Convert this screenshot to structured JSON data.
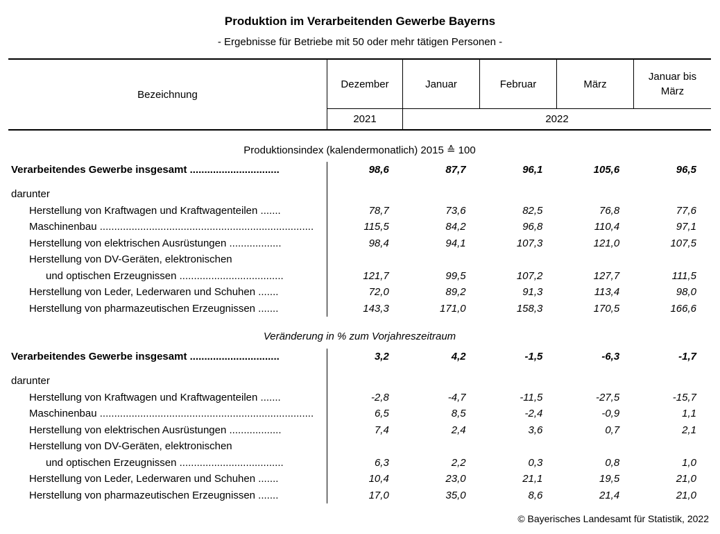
{
  "title": "Produktion im Verarbeitenden Gewerbe Bayerns",
  "subtitle": "- Ergebnisse für Betriebe mit 50 oder mehr tätigen Personen -",
  "header": {
    "label": "Bezeichnung",
    "months": [
      "Dezember",
      "Januar",
      "Februar",
      "März",
      "Januar bis März"
    ],
    "year1": "2021",
    "year2": "2022"
  },
  "sections": [
    {
      "heading": "Produktionsindex (kalendermonatlich) 2015 ≙ 100",
      "italic": false,
      "total": {
        "label": "Verarbeitendes Gewerbe insgesamt ...............................",
        "values": [
          "98,6",
          "87,7",
          "96,1",
          "105,6",
          "96,5"
        ]
      },
      "darunter": "darunter",
      "rows": [
        {
          "label": "Herstellung von Kraftwagen und Kraftwagenteilen .......",
          "values": [
            "78,7",
            "73,6",
            "82,5",
            "76,8",
            "77,6"
          ]
        },
        {
          "label": "Maschinenbau ..........................................................................",
          "values": [
            "115,5",
            "84,2",
            "96,8",
            "110,4",
            "97,1"
          ]
        },
        {
          "label": "Herstellung von elektrischen Ausrüstungen ..................",
          "values": [
            "98,4",
            "94,1",
            "107,3",
            "121,0",
            "107,5"
          ]
        },
        {
          "label": "Herstellung von DV-Geräten, elektronischen",
          "values": []
        },
        {
          "label": "und optischen Erzeugnissen ....................................",
          "indent": true,
          "values": [
            "121,7",
            "99,5",
            "107,2",
            "127,7",
            "111,5"
          ]
        },
        {
          "label": "Herstellung von Leder, Lederwaren und Schuhen .......",
          "values": [
            "72,0",
            "89,2",
            "91,3",
            "113,4",
            "98,0"
          ]
        },
        {
          "label": "Herstellung von pharmazeutischen Erzeugnissen .......",
          "values": [
            "143,3",
            "171,0",
            "158,3",
            "170,5",
            "166,6"
          ]
        }
      ]
    },
    {
      "heading": "Veränderung in % zum Vorjahreszeitraum",
      "italic": true,
      "total": {
        "label": "Verarbeitendes Gewerbe insgesamt ...............................",
        "values": [
          "3,2",
          "4,2",
          "-1,5",
          "-6,3",
          "-1,7"
        ]
      },
      "darunter": "darunter",
      "rows": [
        {
          "label": "Herstellung von Kraftwagen und Kraftwagenteilen .......",
          "values": [
            "-2,8",
            "-4,7",
            "-11,5",
            "-27,5",
            "-15,7"
          ]
        },
        {
          "label": "Maschinenbau ..........................................................................",
          "values": [
            "6,5",
            "8,5",
            "-2,4",
            "-0,9",
            "1,1"
          ]
        },
        {
          "label": "Herstellung von elektrischen Ausrüstungen ..................",
          "values": [
            "7,4",
            "2,4",
            "3,6",
            "0,7",
            "2,1"
          ]
        },
        {
          "label": "Herstellung von DV-Geräten, elektronischen",
          "values": []
        },
        {
          "label": "und optischen Erzeugnissen ....................................",
          "indent": true,
          "values": [
            "6,3",
            "2,2",
            "0,3",
            "0,8",
            "1,0"
          ]
        },
        {
          "label": "Herstellung von Leder, Lederwaren und Schuhen .......",
          "values": [
            "10,4",
            "23,0",
            "21,1",
            "19,5",
            "21,0"
          ]
        },
        {
          "label": "Herstellung von pharmazeutischen Erzeugnissen .......",
          "values": [
            "17,0",
            "35,0",
            "8,6",
            "21,4",
            "21,0"
          ]
        }
      ]
    }
  ],
  "footer": "©  Bayerisches Landesamt für Statistik, 2022"
}
